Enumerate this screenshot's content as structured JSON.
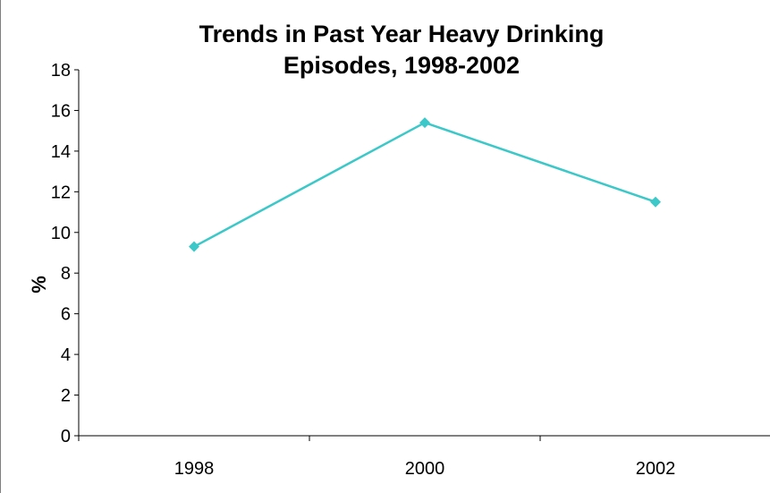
{
  "chart_data": {
    "type": "line",
    "title_lines": [
      "Trends in Past Year Heavy Drinking",
      "Episodes, 1998-2002"
    ],
    "xlabel": "",
    "ylabel": "%",
    "categories": [
      "1998",
      "2000",
      "2002"
    ],
    "series": [
      {
        "values": [
          9.3,
          15.4,
          11.5
        ]
      }
    ],
    "ylim": [
      0,
      18
    ],
    "ytick_step": 2,
    "ytick_labels": [
      "0",
      "2",
      "4",
      "6",
      "8",
      "10",
      "12",
      "14",
      "16",
      "18"
    ],
    "grid": false,
    "legend": "none",
    "series_color": "#3cc8c8",
    "axis_color": "#000000"
  }
}
